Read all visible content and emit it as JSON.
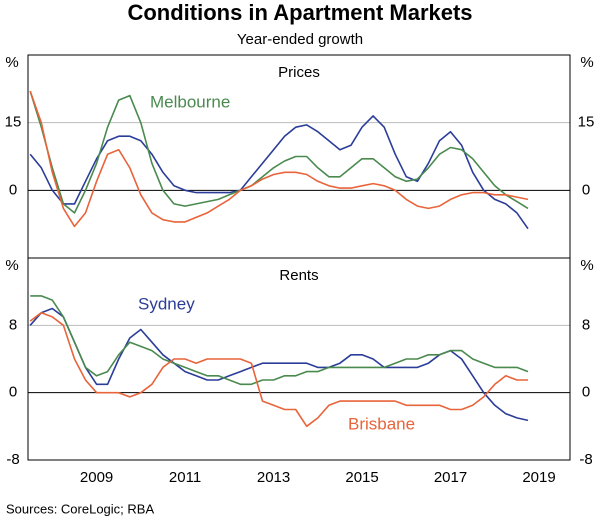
{
  "title": "Conditions in Apartment Markets",
  "subtitle": "Year-ended growth",
  "source": "Sources: CoreLogic; RBA",
  "chart_data": [
    {
      "type": "line",
      "title": "Prices",
      "y_unit": "%",
      "x": [
        2008,
        2008.25,
        2008.5,
        2008.75,
        2009,
        2009.25,
        2009.5,
        2009.75,
        2010,
        2010.25,
        2010.5,
        2010.75,
        2011,
        2011.25,
        2011.5,
        2011.75,
        2012,
        2012.25,
        2012.5,
        2012.75,
        2013,
        2013.25,
        2013.5,
        2013.75,
        2014,
        2014.25,
        2014.5,
        2014.75,
        2015,
        2015.25,
        2015.5,
        2015.75,
        2016,
        2016.25,
        2016.5,
        2016.75,
        2017,
        2017.25,
        2017.5,
        2017.75,
        2018,
        2018.25,
        2018.5,
        2018.75,
        2019,
        2019.25
      ],
      "xlim": [
        2007.95,
        2020.2
      ],
      "ylim": [
        -15,
        30
      ],
      "yticks": [
        0,
        15
      ],
      "series": [
        {
          "color": "#2b3d99",
          "values": [
            8,
            5,
            0,
            -3,
            -3,
            2,
            7,
            11,
            12,
            12,
            11,
            8,
            4,
            1,
            0,
            -0.5,
            -0.5,
            -0.5,
            -0.5,
            0,
            3,
            6,
            9,
            12,
            14,
            14.5,
            13,
            11,
            9,
            10,
            14,
            16.5,
            14,
            8,
            3,
            2,
            6,
            11,
            13,
            10,
            4,
            0,
            -2,
            -3,
            -5,
            -8.5
          ]
        },
        {
          "name": "Melbourne",
          "color": "#4a8a4f",
          "values": [
            22,
            14,
            5,
            -3,
            -5,
            0,
            6,
            14,
            20,
            21,
            15,
            6,
            0,
            -3,
            -3.5,
            -3,
            -2.5,
            -2,
            -1,
            0,
            1,
            3,
            5,
            6.5,
            7.5,
            7.5,
            5,
            3,
            3,
            5,
            7,
            7,
            5,
            3,
            2,
            2.5,
            5,
            8,
            9.5,
            9,
            7,
            4,
            1,
            -1,
            -2.5,
            -4
          ]
        },
        {
          "color": "#e8643a",
          "values": [
            22,
            15,
            4,
            -4,
            -8,
            -5,
            2,
            8,
            9,
            5,
            -1,
            -5,
            -6.5,
            -7,
            -7,
            -6,
            -5,
            -3.5,
            -2,
            0,
            1,
            2.5,
            3.5,
            4,
            4,
            3.5,
            2,
            1,
            0.5,
            0.5,
            1,
            1.5,
            1,
            0,
            -2,
            -3.5,
            -4,
            -3.5,
            -2,
            -1,
            -0.5,
            -0.5,
            -1,
            -1,
            -1.5,
            -2
          ]
        }
      ]
    },
    {
      "type": "line",
      "title": "Rents",
      "y_unit": "%",
      "x": [
        2008,
        2008.25,
        2008.5,
        2008.75,
        2009,
        2009.25,
        2009.5,
        2009.75,
        2010,
        2010.25,
        2010.5,
        2010.75,
        2011,
        2011.25,
        2011.5,
        2011.75,
        2012,
        2012.25,
        2012.5,
        2012.75,
        2013,
        2013.25,
        2013.5,
        2013.75,
        2014,
        2014.25,
        2014.5,
        2014.75,
        2015,
        2015.25,
        2015.5,
        2015.75,
        2016,
        2016.25,
        2016.5,
        2016.75,
        2017,
        2017.25,
        2017.5,
        2017.75,
        2018,
        2018.25,
        2018.5,
        2018.75,
        2019,
        2019.25
      ],
      "xlim": [
        2007.95,
        2020.2
      ],
      "xticks": [
        {
          "value": 2009.5,
          "label": "2009"
        },
        {
          "value": 2011.5,
          "label": "2011"
        },
        {
          "value": 2013.5,
          "label": "2013"
        },
        {
          "value": 2015.5,
          "label": "2015"
        },
        {
          "value": 2017.5,
          "label": "2017"
        },
        {
          "value": 2019.5,
          "label": "2019"
        }
      ],
      "ylim": [
        -8,
        16
      ],
      "yticks": [
        -8,
        0,
        8
      ],
      "series": [
        {
          "name": "Sydney",
          "color": "#2b3d99",
          "values": [
            8,
            9.5,
            10,
            9,
            6,
            3,
            1,
            1,
            4,
            6.5,
            7.5,
            6,
            4.5,
            3.5,
            2.5,
            2,
            1.5,
            1.5,
            2,
            2.5,
            3,
            3.5,
            3.5,
            3.5,
            3.5,
            3.5,
            3,
            3,
            3.5,
            4.5,
            4.5,
            4,
            3,
            3,
            3,
            3,
            3.5,
            4.5,
            5,
            4,
            2,
            0,
            -1.5,
            -2.5,
            -3,
            -3.3
          ]
        },
        {
          "color": "#4a8a4f",
          "values": [
            11.5,
            11.5,
            11,
            9,
            6,
            3,
            2,
            2.5,
            4.5,
            6,
            5.5,
            5,
            4,
            3.5,
            3,
            2.5,
            2,
            2,
            1.5,
            1,
            1,
            1.5,
            1.5,
            2,
            2,
            2.5,
            2.5,
            3,
            3,
            3,
            3,
            3,
            3,
            3.5,
            4,
            4,
            4.5,
            4.5,
            5,
            5,
            4,
            3.5,
            3,
            3,
            3,
            2.5
          ]
        },
        {
          "name": "Brisbane",
          "color": "#e8643a",
          "values": [
            8.5,
            9.5,
            9,
            8,
            4,
            1.5,
            0,
            0,
            0,
            -0.5,
            0,
            1,
            3,
            4,
            4,
            3.5,
            4,
            4,
            4,
            4,
            3.5,
            -1,
            -1.5,
            -2,
            -2,
            -4,
            -3,
            -1.5,
            -1,
            -1,
            -1,
            -1,
            -1,
            -1,
            -1.5,
            -1.5,
            -1.5,
            -1.5,
            -2,
            -2,
            -1.5,
            -0.5,
            1,
            2,
            1.5,
            1.5
          ]
        }
      ]
    }
  ]
}
